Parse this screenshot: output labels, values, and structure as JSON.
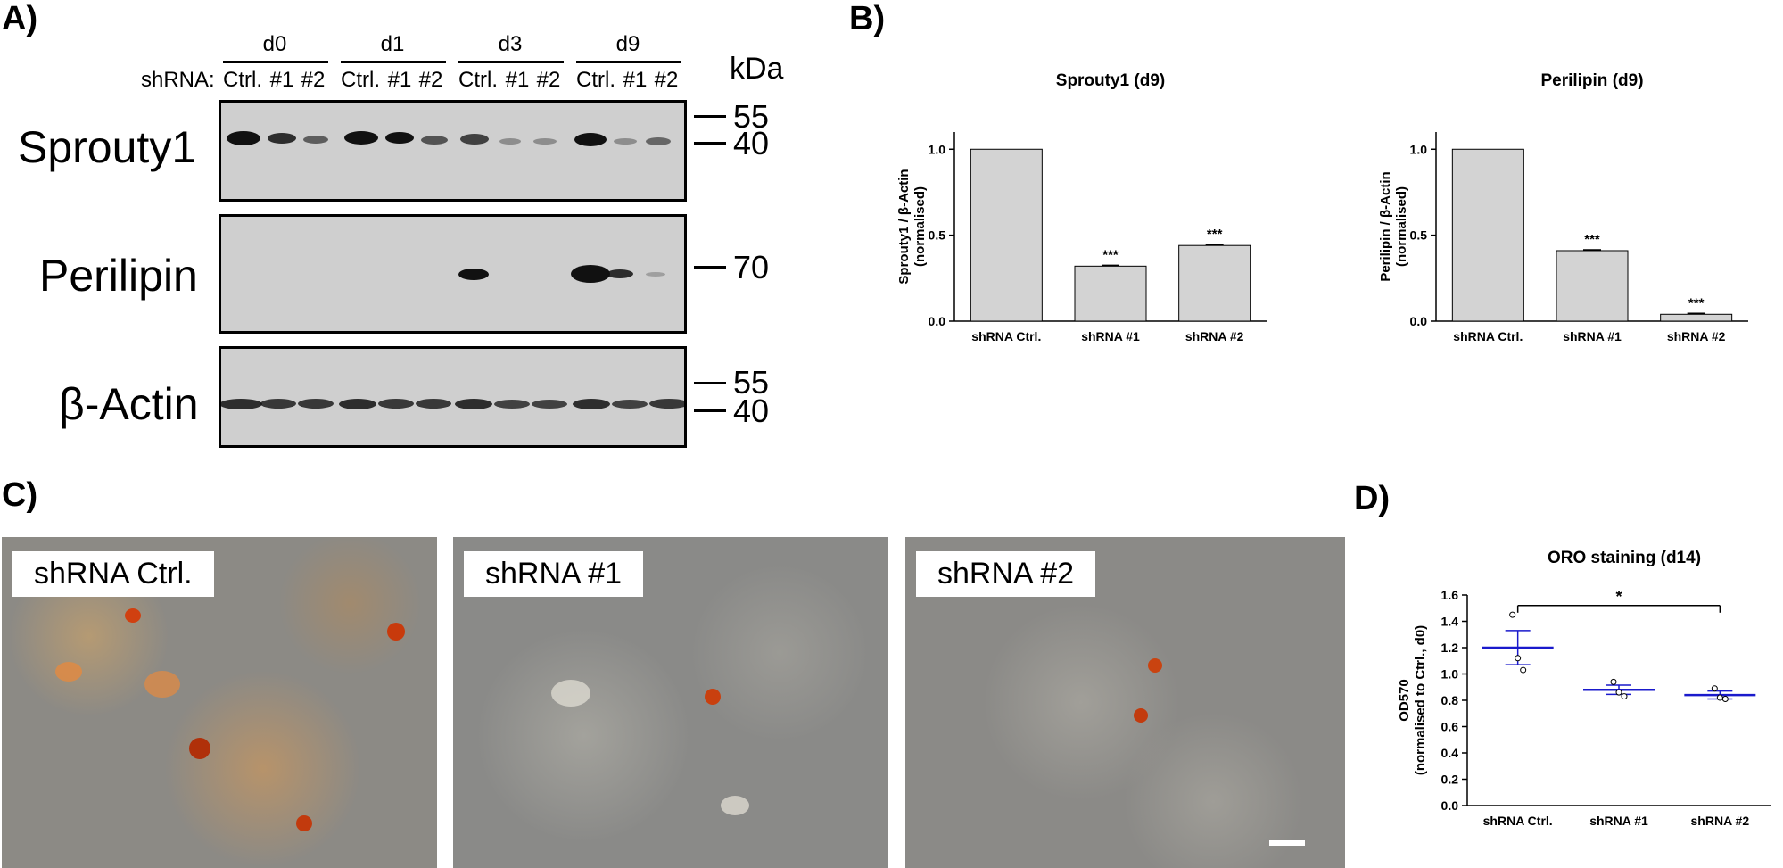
{
  "panels": {
    "a": "A)",
    "b": "B)",
    "c": "C)",
    "d": "D)"
  },
  "western_blot": {
    "days": [
      "d0",
      "d1",
      "d3",
      "d9"
    ],
    "row_prefix": "shRNA:",
    "lanes": [
      "Ctrl.",
      "#1",
      "#2"
    ],
    "kda_label": "kDa",
    "blots": [
      {
        "name": "Sprouty1",
        "markers": [
          "55",
          "40"
        ]
      },
      {
        "name": "Perilipin",
        "markers": [
          "70"
        ]
      },
      {
        "name": "β-Actin",
        "markers": [
          "55",
          "40"
        ]
      }
    ]
  },
  "micrographs": [
    "shRNA Ctrl.",
    "shRNA #1",
    "shRNA #2"
  ],
  "chart_data": [
    {
      "type": "bar",
      "title": "Sprouty1 (d9)",
      "ylabel_line1": "Sprouty1 / β-Actin",
      "ylabel_line2": "(normalised)",
      "categories": [
        "shRNA Ctrl.",
        "shRNA #1",
        "shRNA #2"
      ],
      "values": [
        1.0,
        0.32,
        0.44
      ],
      "annotations": [
        "",
        "***",
        "***"
      ],
      "ylim": [
        0,
        1.1
      ],
      "yticks": [
        "0.0",
        "0.5",
        "1.0"
      ],
      "bar_color": "#d3d3d3"
    },
    {
      "type": "bar",
      "title": "Perilipin (d9)",
      "ylabel_line1": "Perilipin / β-Actin",
      "ylabel_line2": "(normalised)",
      "categories": [
        "shRNA Ctrl.",
        "shRNA #1",
        "shRNA #2"
      ],
      "values": [
        1.0,
        0.41,
        0.04
      ],
      "annotations": [
        "",
        "***",
        "***"
      ],
      "ylim": [
        0,
        1.1
      ],
      "yticks": [
        "0.0",
        "0.5",
        "1.0"
      ],
      "bar_color": "#d3d3d3"
    },
    {
      "type": "scatter",
      "title": "ORO staining (d14)",
      "ylabel_line1": "OD570",
      "ylabel_line2": "(normalised to Ctrl., d0)",
      "categories": [
        "shRNA Ctrl.",
        "shRNA #1",
        "shRNA #2"
      ],
      "points": [
        [
          1.45,
          1.12,
          1.03
        ],
        [
          0.94,
          0.86,
          0.83
        ],
        [
          0.89,
          0.82,
          0.81
        ]
      ],
      "means": [
        1.2,
        0.88,
        0.84
      ],
      "sem": [
        0.13,
        0.035,
        0.03
      ],
      "ylim": [
        0,
        1.6
      ],
      "yticks": [
        "0.0",
        "0.2",
        "0.4",
        "0.6",
        "0.8",
        "1.0",
        "1.2",
        "1.4",
        "1.6"
      ],
      "significance": "*",
      "mean_color": "#1a1acc"
    }
  ]
}
